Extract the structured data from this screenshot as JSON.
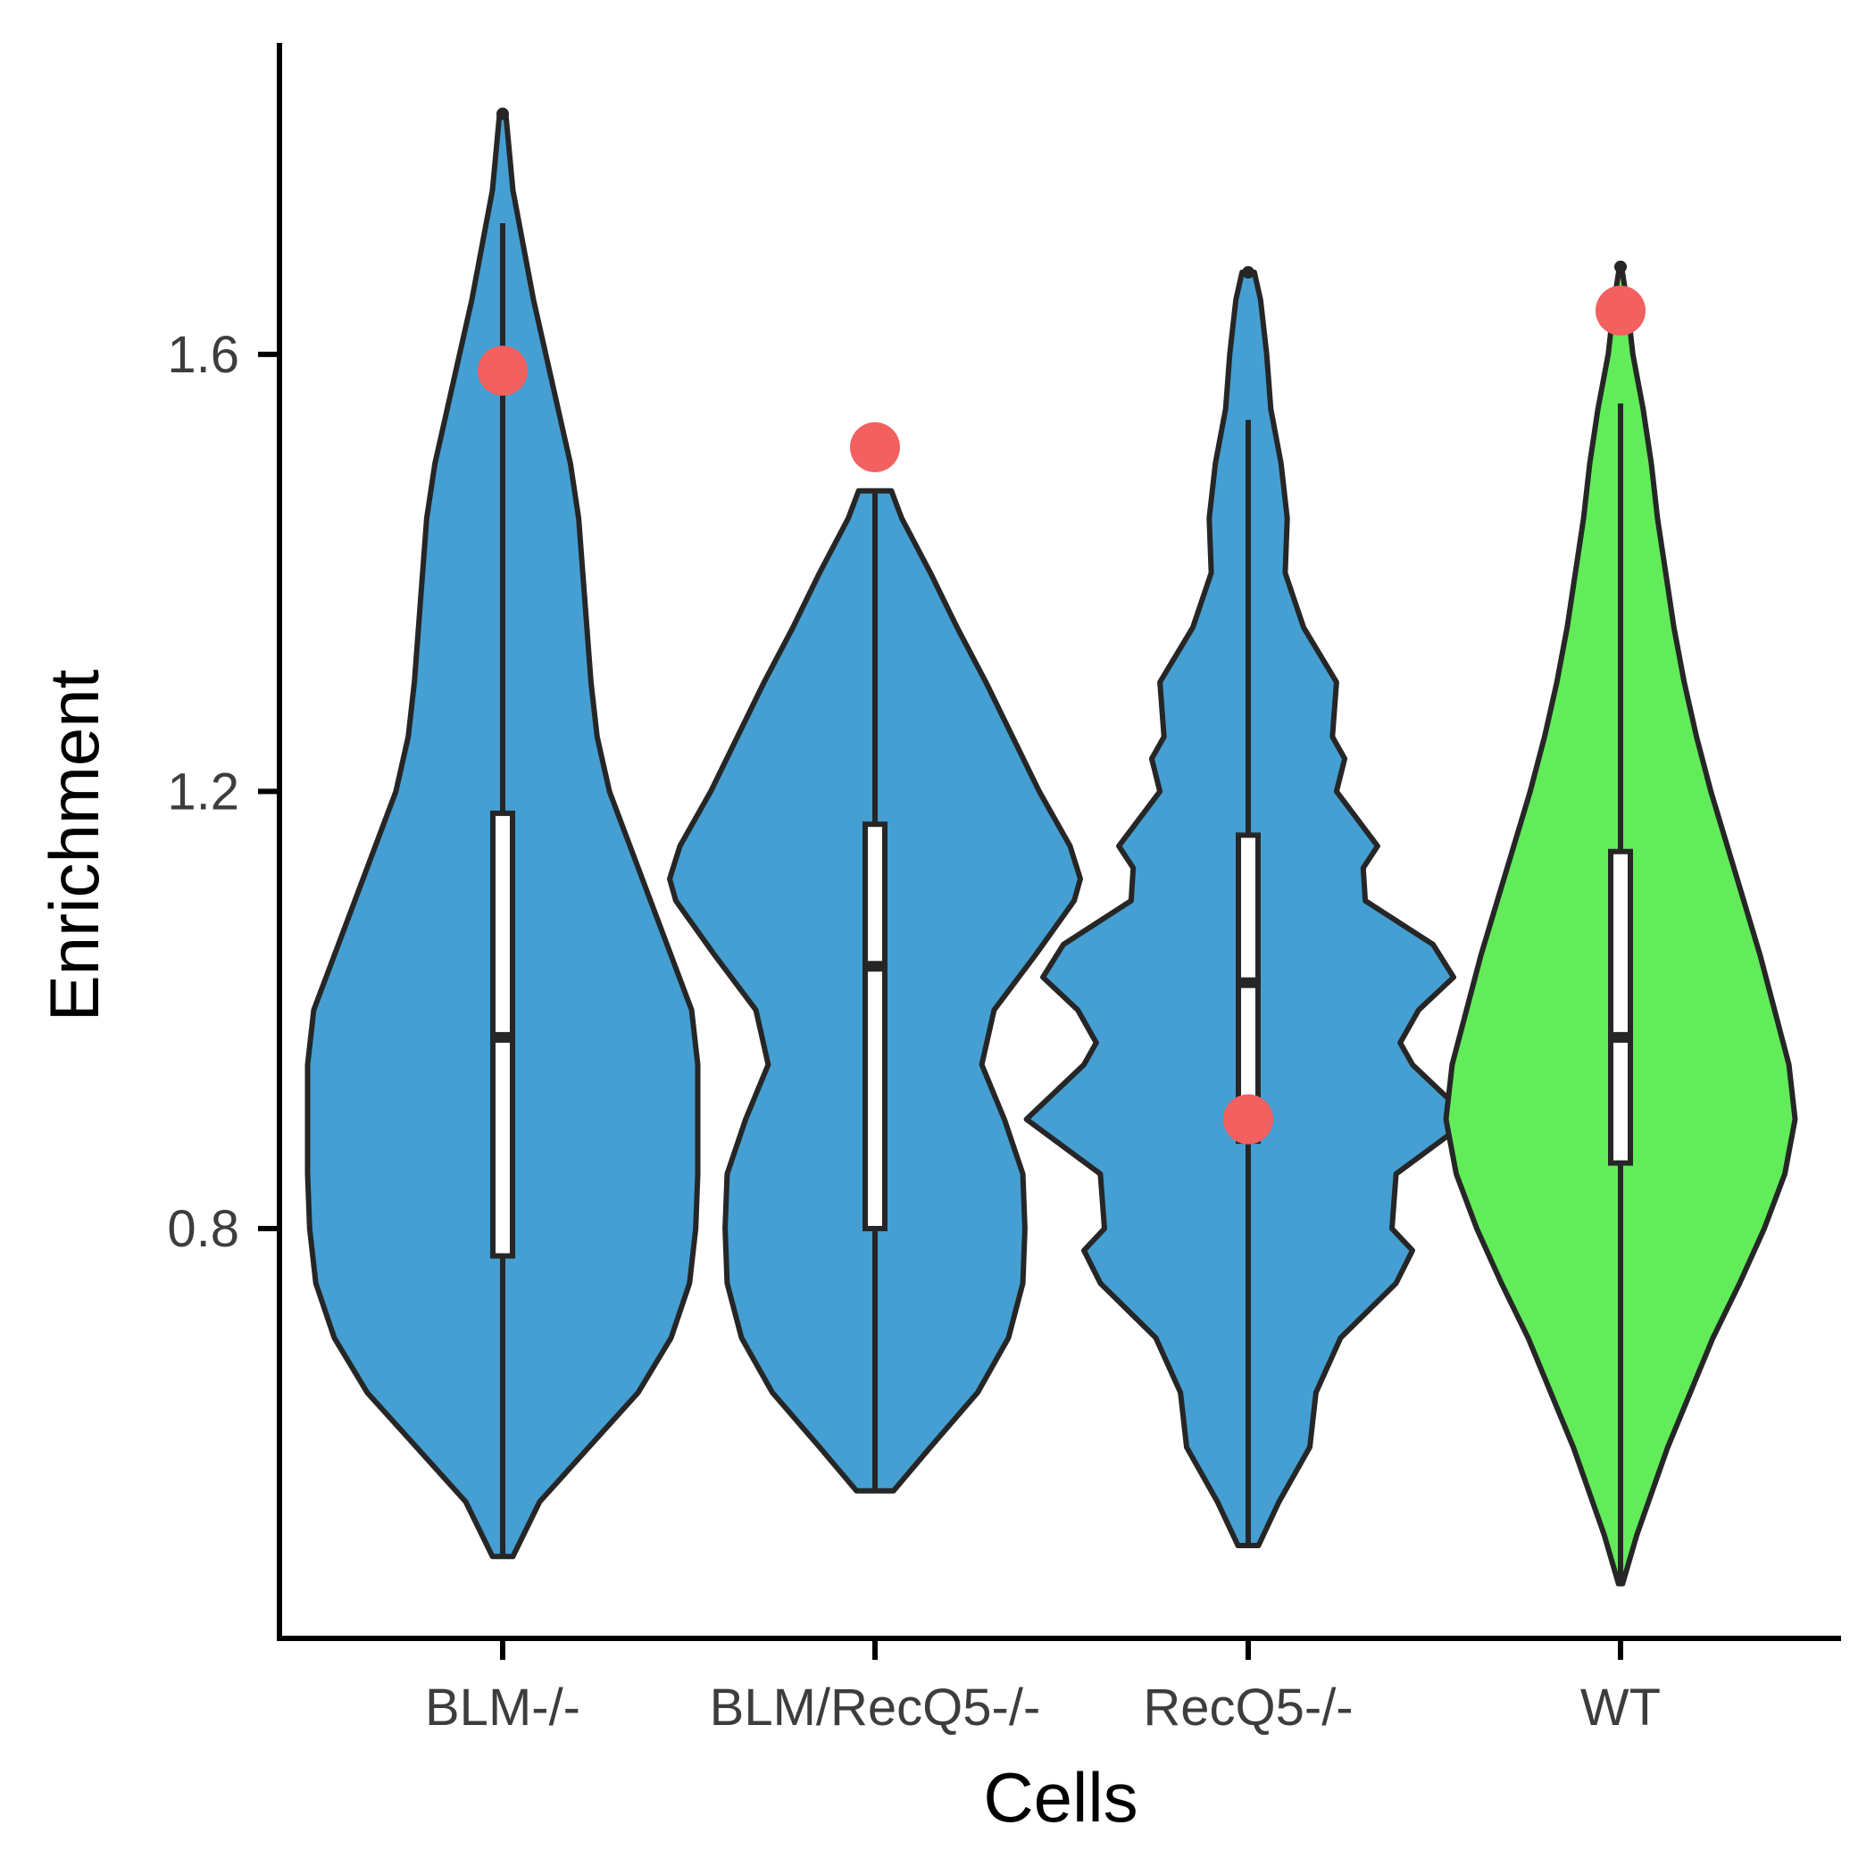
{
  "chart_data": {
    "type": "violin",
    "title": "",
    "xlabel": "Cells",
    "ylabel": "Enrichment",
    "ylim": [
      0.425,
      1.885
    ],
    "yticks": [
      0.8,
      1.2,
      1.6
    ],
    "ytick_labels": [
      "0.8",
      "1.2",
      "1.6"
    ],
    "grid": false,
    "legend": "none",
    "categories": [
      "BLM-/-",
      "BLM/RecQ5-/-",
      "RecQ5-/-",
      "WT"
    ],
    "colors": {
      "violin_default": "#459fd2",
      "violin_highlight": "#62ec5a",
      "outline": "#262626",
      "highlight_point": "#f2605f",
      "box_fill": "#ffffff"
    },
    "groups": [
      {
        "name": "BLM-/-",
        "fill": "#459fd2",
        "min": 0.5,
        "max": 1.82,
        "box": {
          "q1": 0.775,
          "median": 0.975,
          "q3": 1.18
        },
        "whisker": {
          "low": 0.5,
          "high": 1.72
        },
        "outliers": [
          1.82
        ],
        "highlight": 1.585,
        "density": [
          [
            0.5,
            0.05
          ],
          [
            0.55,
            0.18
          ],
          [
            0.6,
            0.42
          ],
          [
            0.65,
            0.66
          ],
          [
            0.7,
            0.82
          ],
          [
            0.75,
            0.91
          ],
          [
            0.8,
            0.94
          ],
          [
            0.85,
            0.95
          ],
          [
            0.9,
            0.95
          ],
          [
            0.95,
            0.95
          ],
          [
            1.0,
            0.92
          ],
          [
            1.05,
            0.82
          ],
          [
            1.1,
            0.72
          ],
          [
            1.15,
            0.62
          ],
          [
            1.2,
            0.52
          ],
          [
            1.25,
            0.46
          ],
          [
            1.3,
            0.43
          ],
          [
            1.35,
            0.41
          ],
          [
            1.4,
            0.39
          ],
          [
            1.45,
            0.37
          ],
          [
            1.5,
            0.33
          ],
          [
            1.55,
            0.27
          ],
          [
            1.6,
            0.21
          ],
          [
            1.65,
            0.15
          ],
          [
            1.7,
            0.1
          ],
          [
            1.75,
            0.05
          ],
          [
            1.82,
            0.015
          ]
        ]
      },
      {
        "name": "BLM/RecQ5-/-",
        "fill": "#459fd2",
        "min": 0.56,
        "max": 1.475,
        "box": {
          "q1": 0.8,
          "median": 1.04,
          "q3": 1.17
        },
        "whisker": {
          "low": 0.56,
          "high": 1.475
        },
        "outliers": [],
        "highlight": 1.515,
        "density": [
          [
            0.56,
            0.09
          ],
          [
            0.6,
            0.27
          ],
          [
            0.65,
            0.5
          ],
          [
            0.7,
            0.65
          ],
          [
            0.75,
            0.72
          ],
          [
            0.8,
            0.73
          ],
          [
            0.85,
            0.72
          ],
          [
            0.9,
            0.63
          ],
          [
            0.95,
            0.52
          ],
          [
            1.0,
            0.58
          ],
          [
            1.05,
            0.78
          ],
          [
            1.1,
            0.97
          ],
          [
            1.12,
            1.0
          ],
          [
            1.15,
            0.95
          ],
          [
            1.2,
            0.8
          ],
          [
            1.25,
            0.67
          ],
          [
            1.3,
            0.54
          ],
          [
            1.35,
            0.4
          ],
          [
            1.4,
            0.27
          ],
          [
            1.45,
            0.13
          ],
          [
            1.475,
            0.08
          ]
        ]
      },
      {
        "name": "RecQ5-/-",
        "fill": "#459fd2",
        "min": 0.51,
        "max": 1.675,
        "box": {
          "q1": 0.88,
          "median": 1.025,
          "q3": 1.16
        },
        "whisker": {
          "low": 0.51,
          "high": 1.54
        },
        "outliers": [
          1.675
        ],
        "highlight": 0.9,
        "density": [
          [
            0.51,
            0.05
          ],
          [
            0.55,
            0.15
          ],
          [
            0.6,
            0.3
          ],
          [
            0.65,
            0.33
          ],
          [
            0.7,
            0.45
          ],
          [
            0.75,
            0.72
          ],
          [
            0.78,
            0.8
          ],
          [
            0.8,
            0.7
          ],
          [
            0.85,
            0.72
          ],
          [
            0.9,
            1.08
          ],
          [
            0.95,
            0.8
          ],
          [
            0.97,
            0.74
          ],
          [
            1.0,
            0.83
          ],
          [
            1.03,
            1.0
          ],
          [
            1.06,
            0.9
          ],
          [
            1.1,
            0.57
          ],
          [
            1.13,
            0.56
          ],
          [
            1.15,
            0.63
          ],
          [
            1.2,
            0.43
          ],
          [
            1.23,
            0.47
          ],
          [
            1.25,
            0.41
          ],
          [
            1.3,
            0.43
          ],
          [
            1.35,
            0.27
          ],
          [
            1.4,
            0.18
          ],
          [
            1.45,
            0.19
          ],
          [
            1.5,
            0.16
          ],
          [
            1.55,
            0.11
          ],
          [
            1.6,
            0.09
          ],
          [
            1.65,
            0.06
          ],
          [
            1.675,
            0.03
          ]
        ]
      },
      {
        "name": "WT",
        "fill": "#62ec5a",
        "min": 0.475,
        "max": 1.68,
        "box": {
          "q1": 0.86,
          "median": 0.975,
          "q3": 1.145
        },
        "whisker": {
          "low": 0.475,
          "high": 1.555
        },
        "outliers": [
          1.68
        ],
        "highlight": 1.64,
        "density": [
          [
            0.475,
            0.01
          ],
          [
            0.52,
            0.08
          ],
          [
            0.6,
            0.23
          ],
          [
            0.7,
            0.45
          ],
          [
            0.75,
            0.58
          ],
          [
            0.8,
            0.7
          ],
          [
            0.85,
            0.8
          ],
          [
            0.9,
            0.85
          ],
          [
            0.95,
            0.82
          ],
          [
            1.0,
            0.75
          ],
          [
            1.05,
            0.68
          ],
          [
            1.1,
            0.6
          ],
          [
            1.15,
            0.52
          ],
          [
            1.2,
            0.44
          ],
          [
            1.25,
            0.37
          ],
          [
            1.3,
            0.31
          ],
          [
            1.35,
            0.26
          ],
          [
            1.4,
            0.22
          ],
          [
            1.45,
            0.18
          ],
          [
            1.5,
            0.15
          ],
          [
            1.55,
            0.11
          ],
          [
            1.6,
            0.06
          ],
          [
            1.65,
            0.03
          ],
          [
            1.68,
            0.005
          ]
        ]
      }
    ]
  }
}
